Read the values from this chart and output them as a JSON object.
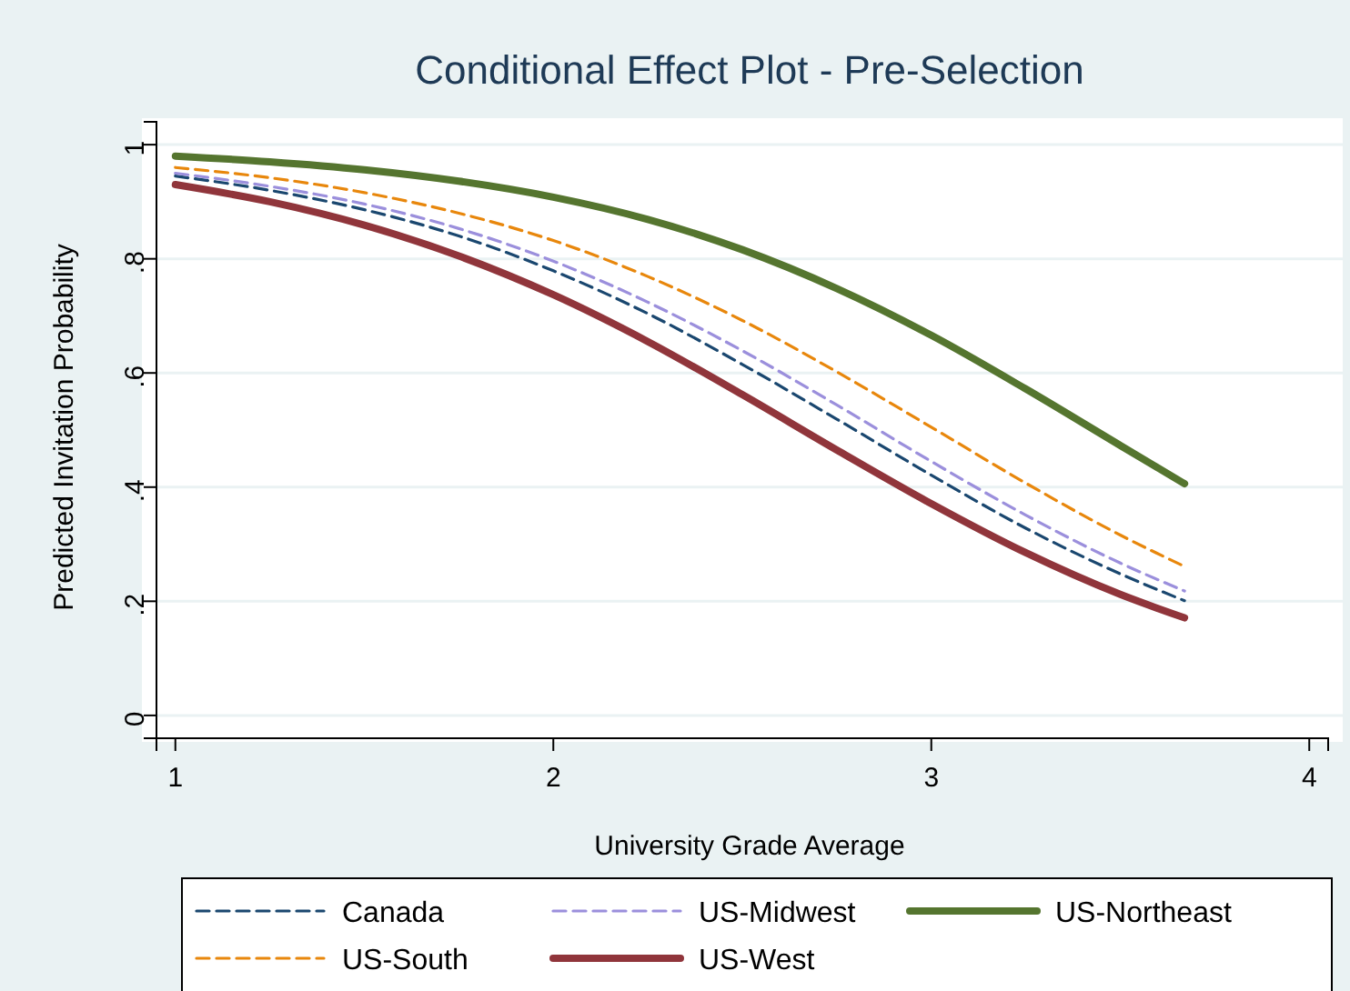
{
  "chart_data": {
    "type": "line",
    "title": "Conditional Effect Plot - Pre-Selection",
    "xlabel": "University Grade Average",
    "ylabel": "Predicted Invitation Probability",
    "x": [
      1,
      1.25,
      1.5,
      1.75,
      2,
      2.25,
      2.5,
      2.75,
      3,
      3.25,
      3.5,
      3.67
    ],
    "series": [
      {
        "name": "Canada",
        "color": "#1a476f",
        "line_style": "dashed",
        "values": [
          0.945,
          0.92,
          0.886,
          0.84,
          0.779,
          0.704,
          0.615,
          0.519,
          0.421,
          0.328,
          0.248,
          0.201
        ]
      },
      {
        "name": "US-Midwest",
        "color": "#9b8fdc",
        "line_style": "dashed",
        "values": [
          0.95,
          0.927,
          0.896,
          0.853,
          0.796,
          0.724,
          0.639,
          0.544,
          0.445,
          0.351,
          0.267,
          0.218
        ]
      },
      {
        "name": "US-Northeast",
        "color": "#55752f",
        "line_style": "solid",
        "values": [
          0.98,
          0.97,
          0.956,
          0.936,
          0.908,
          0.869,
          0.816,
          0.748,
          0.666,
          0.572,
          0.473,
          0.406
        ]
      },
      {
        "name": "US-South",
        "color": "#e8870c",
        "line_style": "dashed",
        "values": [
          0.96,
          0.942,
          0.916,
          0.88,
          0.832,
          0.769,
          0.692,
          0.602,
          0.505,
          0.407,
          0.316,
          0.261
        ]
      },
      {
        "name": "US-West",
        "color": "#90353b",
        "line_style": "solid",
        "values": [
          0.93,
          0.9,
          0.859,
          0.805,
          0.737,
          0.655,
          0.562,
          0.465,
          0.371,
          0.285,
          0.212,
          0.171
        ]
      }
    ],
    "xlim": [
      0.95,
      4.05
    ],
    "xticks": [
      1,
      2,
      3,
      4
    ],
    "ylim": [
      -0.04,
      1.04
    ],
    "yticks": [
      {
        "value": 0,
        "label": "0"
      },
      {
        "value": 0.2,
        "label": ".2"
      },
      {
        "value": 0.4,
        "label": ".4"
      },
      {
        "value": 0.6,
        "label": ".6"
      },
      {
        "value": 0.8,
        "label": ".8"
      },
      {
        "value": 1,
        "label": "1"
      }
    ],
    "grid": "y",
    "legend": "bottom"
  }
}
